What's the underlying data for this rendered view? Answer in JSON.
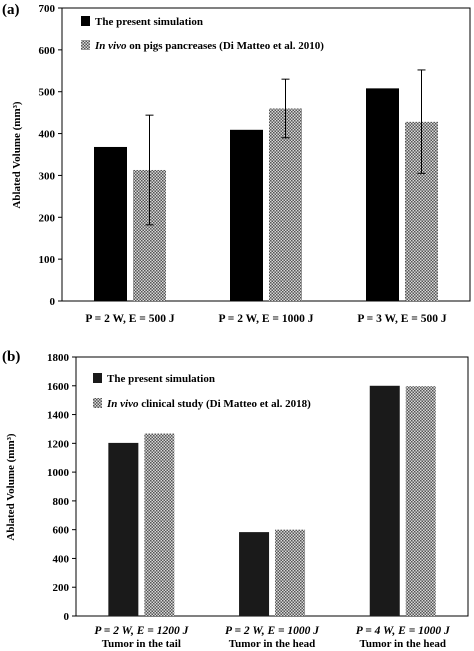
{
  "chart_data": [
    {
      "panel_label": "(a)",
      "type": "bar",
      "categories": [
        "P = 2 W, E = 500 J",
        "P = 2 W, E = 1000 J",
        "P = 3 W, E = 500 J"
      ],
      "categories_sub": [],
      "ylabel": "Ablated Volume (mm³)",
      "ylim": [
        0,
        700
      ],
      "yticks": [
        0,
        100,
        200,
        300,
        400,
        500,
        600,
        700
      ],
      "legend_placement": "top-left",
      "grid": false,
      "series": [
        {
          "name": "The present simulation",
          "name_prefix_italic": "",
          "pattern": "solid",
          "color": "#000000",
          "values": [
            368,
            409,
            508
          ],
          "errors": []
        },
        {
          "name": " on pigs pancreases (Di Matteo et al. 2010)",
          "name_prefix_italic": "In vivo",
          "pattern": "dotted",
          "color": "#8c8c8c",
          "values": [
            313,
            460,
            428
          ],
          "errors": [
            [
              182,
              444
            ],
            [
              390,
              530
            ],
            [
              305,
              552
            ]
          ]
        }
      ]
    },
    {
      "panel_label": "(b)",
      "type": "bar",
      "categories": [
        "P = 2 W, E = 1200 J",
        "P = 2 W, E = 1000 J",
        "P = 4 W, E = 1000 J"
      ],
      "categories_sub": [
        "Tumor in the tail",
        "Tumor in the head",
        "Tumor in the head"
      ],
      "ylabel": "Ablated Volume (mm³)",
      "ylim": [
        0,
        1800
      ],
      "yticks": [
        0,
        200,
        400,
        600,
        800,
        1000,
        1200,
        1400,
        1600,
        1800
      ],
      "legend_placement": "top-left",
      "grid": false,
      "series": [
        {
          "name": "The present simulation",
          "name_prefix_italic": "",
          "pattern": "solid",
          "color": "#1a1a1a",
          "values": [
            1203,
            583,
            1600
          ],
          "errors": []
        },
        {
          "name": " clinical study (Di Matteo et al. 2018)",
          "name_prefix_italic": "In vivo",
          "pattern": "dotted",
          "color": "#8c8c8c",
          "values": [
            1268,
            600,
            1597
          ],
          "errors": []
        }
      ]
    }
  ]
}
